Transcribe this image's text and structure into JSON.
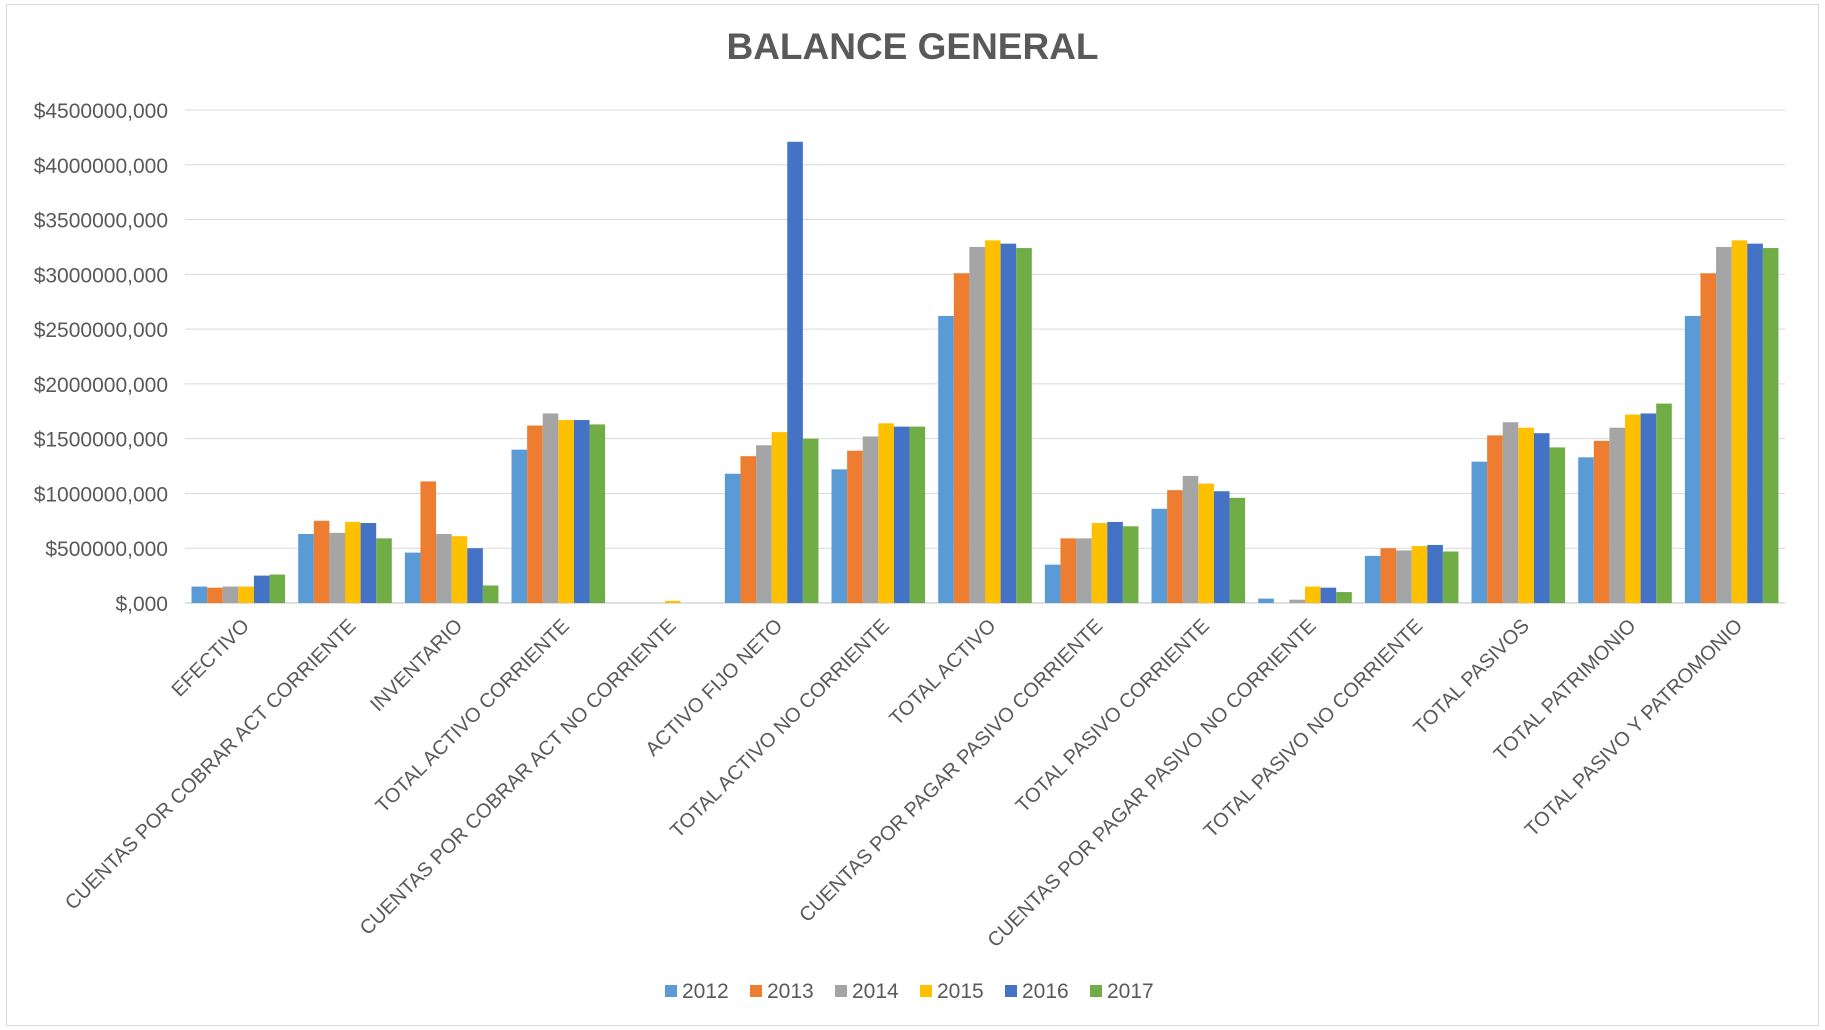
{
  "chart_data": {
    "type": "bar",
    "title": "BALANCE GENERAL",
    "xlabel": "",
    "ylabel": "",
    "ylim": [
      0,
      4500000000
    ],
    "yticks": [
      "$,000",
      "$500000,000",
      "$1000000,000",
      "$1500000,000",
      "$2000000,000",
      "$2500000,000",
      "$3000000,000",
      "$3500000,000",
      "$4000000,000",
      "$4500000,000"
    ],
    "grid": true,
    "legend_position": "bottom",
    "categories": [
      "EFECTIVO",
      "CUENTAS POR COBRAR ACT CORRIENTE",
      "INVENTARIO",
      "TOTAL ACTIVO CORRIENTE",
      "CUENTAS POR COBRAR ACT NO CORRIENTE",
      "ACTIVO FIJO NETO",
      "TOTAL ACTIVO NO CORRIENTE",
      "TOTAL ACTIVO",
      "CUENTAS POR PAGAR PASIVO CORRIENTE",
      "TOTAL PASIVO CORRIENTE",
      "CUENTAS POR PAGAR PASIVO NO CORRIENTE",
      "TOTAL PASIVO NO CORRIENTE",
      "TOTAL PASIVOS",
      "TOTAL PATRIMONIO",
      "TOTAL PASIVO Y PATROMONIO"
    ],
    "series": [
      {
        "name": "2012",
        "color": "#5b9bd5",
        "values": [
          150000000,
          630000000,
          460000000,
          1400000000,
          0,
          1180000000,
          1220000000,
          2620000000,
          350000000,
          860000000,
          40000000,
          430000000,
          1290000000,
          1330000000,
          2620000000
        ]
      },
      {
        "name": "2013",
        "color": "#ed7d31",
        "values": [
          140000000,
          750000000,
          1110000000,
          1620000000,
          0,
          1340000000,
          1390000000,
          3010000000,
          590000000,
          1030000000,
          0,
          500000000,
          1530000000,
          1480000000,
          3010000000
        ]
      },
      {
        "name": "2014",
        "color": "#a5a5a5",
        "values": [
          150000000,
          640000000,
          630000000,
          1730000000,
          0,
          1440000000,
          1520000000,
          3250000000,
          590000000,
          1160000000,
          30000000,
          480000000,
          1650000000,
          1600000000,
          3250000000
        ]
      },
      {
        "name": "2015",
        "color": "#ffc000",
        "values": [
          150000000,
          740000000,
          610000000,
          1670000000,
          20000000,
          1560000000,
          1640000000,
          3310000000,
          730000000,
          1090000000,
          150000000,
          520000000,
          1600000000,
          1720000000,
          3310000000
        ]
      },
      {
        "name": "2016",
        "color": "#4472c4",
        "values": [
          250000000,
          730000000,
          500000000,
          1670000000,
          0,
          4210000000,
          1610000000,
          3280000000,
          740000000,
          1020000000,
          140000000,
          530000000,
          1550000000,
          1730000000,
          3280000000
        ]
      },
      {
        "name": "2017",
        "color": "#70ad47",
        "values": [
          260000000,
          590000000,
          160000000,
          1630000000,
          0,
          1500000000,
          1610000000,
          3240000000,
          700000000,
          960000000,
          100000000,
          470000000,
          1420000000,
          1820000000,
          3240000000
        ]
      }
    ]
  }
}
